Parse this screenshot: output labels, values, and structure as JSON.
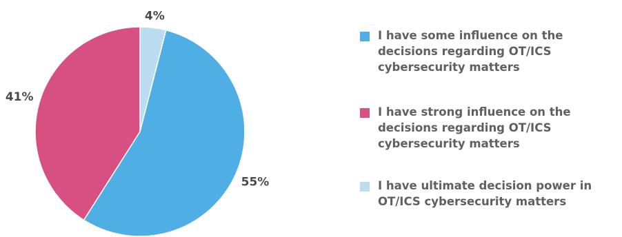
{
  "chart_data": {
    "type": "pie",
    "title": "",
    "start_angle_deg": 0,
    "direction": "clockwise",
    "legend_position": "right",
    "slices": [
      {
        "label": "I have ultimate decision power in OT/ICS cybersecurity matters",
        "value": 4,
        "display": "4%",
        "color": "#bcdcf2"
      },
      {
        "label": "I have some influence on the decisions regarding OT/ICS cybersecurity matters",
        "value": 55,
        "display": "55%",
        "color": "#4faee3"
      },
      {
        "label": "I have strong influence on the decisions regarding OT/ICS cybersecurity matters",
        "value": 41,
        "display": "41%",
        "color": "#d84f82"
      }
    ],
    "legend": [
      {
        "label": "I have some influence on the decisions regarding OT/ICS cybersecurity matters",
        "color": "#4faee3"
      },
      {
        "label": "I have strong influence on the decisions regarding OT/ICS cybersecurity matters",
        "color": "#d84f82"
      },
      {
        "label": "I have ultimate decision power in OT/ICS cybersecurity matters",
        "color": "#bcdcf2"
      }
    ]
  }
}
